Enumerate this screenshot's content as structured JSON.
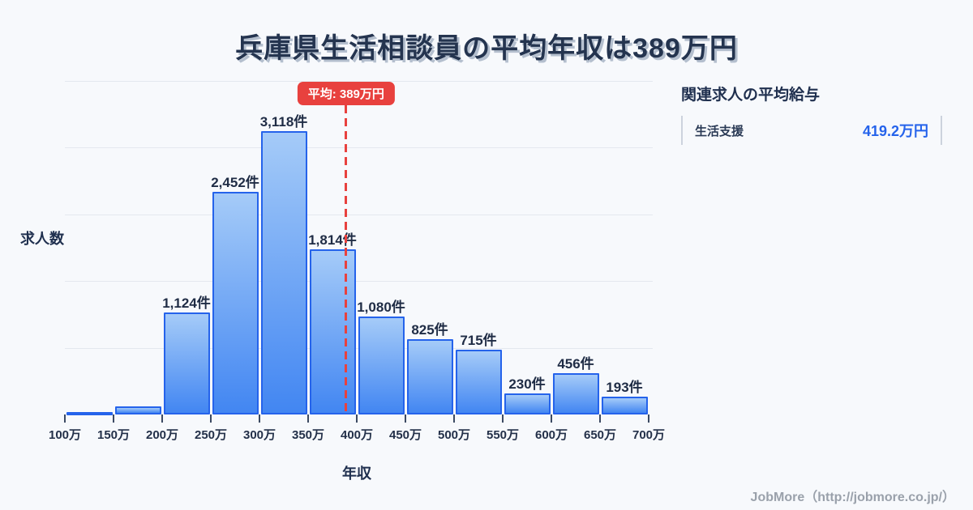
{
  "header": {
    "title": "兵庫県生活相談員の平均年収は389万円"
  },
  "chart_data": {
    "type": "bar",
    "title": "兵庫県生活相談員の平均年収は389万円",
    "xlabel": "年収",
    "ylabel": "求人数",
    "unit": "件",
    "categories": [
      "100万",
      "150万",
      "200万",
      "250万",
      "300万",
      "350万",
      "400万",
      "450万",
      "500万",
      "550万",
      "600万",
      "650万",
      "700万"
    ],
    "bins": [
      {
        "range": "100万-150万",
        "value": 25,
        "label": ""
      },
      {
        "range": "150万-200万",
        "value": 85,
        "label": ""
      },
      {
        "range": "200万-250万",
        "value": 1124,
        "label": "1,124件"
      },
      {
        "range": "250万-300万",
        "value": 2452,
        "label": "2,452件"
      },
      {
        "range": "300万-350万",
        "value": 3118,
        "label": "3,118件"
      },
      {
        "range": "350万-400万",
        "value": 1814,
        "label": "1,814件"
      },
      {
        "range": "400万-450万",
        "value": 1080,
        "label": "1,080件"
      },
      {
        "range": "450万-500万",
        "value": 825,
        "label": "825件"
      },
      {
        "range": "500万-550万",
        "value": 715,
        "label": "715件"
      },
      {
        "range": "550万-600万",
        "value": 230,
        "label": "230件"
      },
      {
        "range": "600万-650万",
        "value": 456,
        "label": "456件"
      },
      {
        "range": "650万-700万",
        "value": 193,
        "label": "193件"
      }
    ],
    "average": {
      "value": 389,
      "label": "平均: 389万円"
    },
    "x_start": 100,
    "x_end": 700,
    "x_step": 50,
    "ylim": [
      0,
      3118
    ],
    "grid": true,
    "legend": "none",
    "colors": {
      "background": "#f7f9fc",
      "title_text": "#24344f",
      "bar_border": "#2563eb",
      "bar_fill_top": "#a5cbf8",
      "bar_fill_bottom": "#4286f2",
      "average_red": "#e8413e",
      "value_blue": "#2563eb",
      "gridline": "#e4e8ef",
      "footer_gray": "#9aa1ab"
    }
  },
  "side_panel": {
    "heading": "関連求人の平均給与",
    "rows": [
      {
        "label": "生活支援",
        "value": "419.2万円"
      }
    ]
  },
  "footer": {
    "credit": "JobMore（http://jobmore.co.jp/）"
  }
}
